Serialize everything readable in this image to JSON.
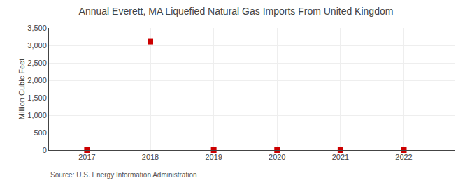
{
  "chart_data": {
    "type": "scatter",
    "title": "Annual Everett, MA Liquefied Natural Gas Imports From United Kingdom",
    "ylabel": "Million Cubic Feet",
    "annotations": [
      "Source: U.S. Energy Information Administration"
    ],
    "x": [
      2017,
      2018,
      2019,
      2020,
      2021,
      2022
    ],
    "values": [
      0,
      3109,
      0,
      0,
      0,
      0
    ],
    "color": "#cc0000",
    "marker": "square",
    "xlim": [
      2016.4,
      2022.8
    ],
    "xticks": [
      2017,
      2018,
      2019,
      2020,
      2021,
      2022
    ],
    "ylim": [
      0,
      3500
    ],
    "yticks": [
      0,
      500,
      {
        "value": 1000,
        "label": "1,000"
      },
      {
        "value": 1500,
        "label": "1,500"
      },
      {
        "value": 2000,
        "label": "2,000"
      },
      {
        "value": 2500,
        "label": "2,500"
      },
      {
        "value": 3000,
        "label": "3,000"
      },
      {
        "value": 3500,
        "label": "3,500"
      }
    ],
    "grid": true
  }
}
